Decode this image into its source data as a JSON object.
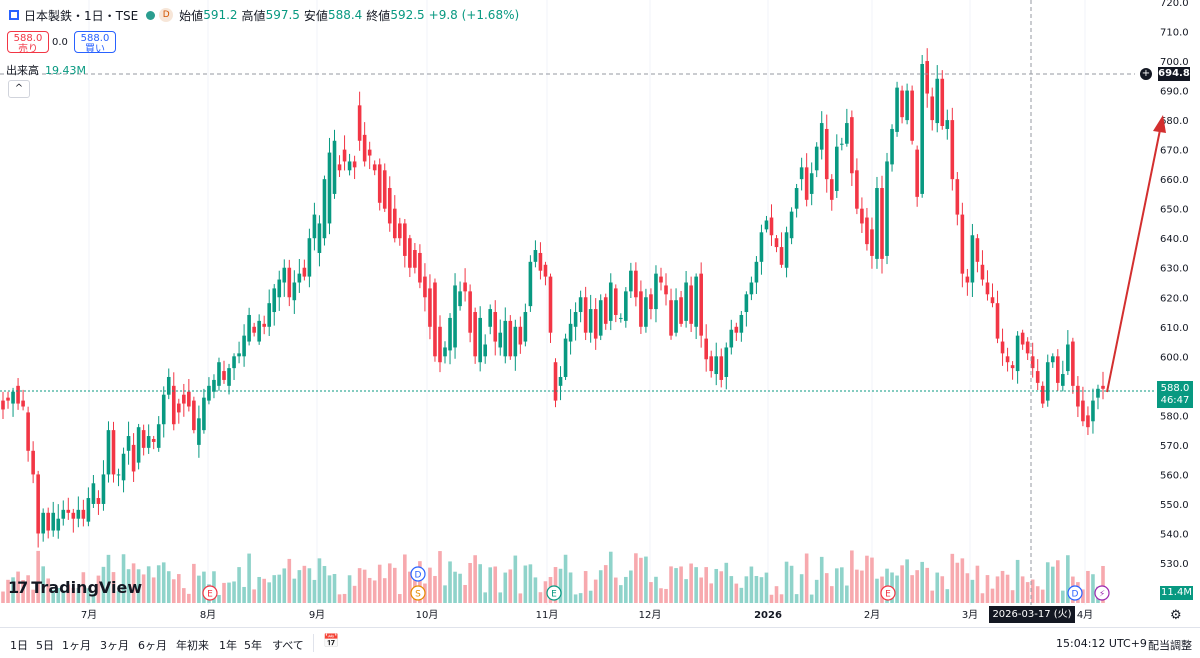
{
  "header": {
    "symbol": "日本製鉄・1日・TSE",
    "open_label": "始値",
    "open": "591.2",
    "high_label": "高値",
    "high": "597.5",
    "low_label": "安値",
    "low": "588.4",
    "close_label": "終値",
    "close": "592.5",
    "change": "+9.8 (+1.68%)",
    "d_badge": "D"
  },
  "sell": {
    "price": "588.0",
    "label": "売り"
  },
  "spread": "0.0",
  "buy": {
    "price": "588.0",
    "label": "買い"
  },
  "volume_label": "出来高",
  "volume_value": "19.43M",
  "collapse_glyph": "^",
  "logo": {
    "mark": "17",
    "text": "TradingView"
  },
  "price_badge": {
    "price": "588.0",
    "countdown": "46:47"
  },
  "crosshair": {
    "price": "694.8",
    "date": "2026-03-17 (火)"
  },
  "volume_badge": "11.4M",
  "event_markers": [
    {
      "x_month": "8月",
      "glyph": "E"
    },
    {
      "x_month": "10月",
      "glyph": "D"
    },
    {
      "x_month": "10月",
      "glyph": "S"
    },
    {
      "x_month": "11月",
      "glyph": "E"
    },
    {
      "x_month": "2月",
      "glyph": "E"
    },
    {
      "x_month": "4月",
      "glyph": "D"
    },
    {
      "x_month": "4月",
      "glyph": "⚡"
    }
  ],
  "bottom_bar": {
    "ranges": [
      "1日",
      "5日",
      "1ヶ月",
      "3ヶ月",
      "6ヶ月",
      "年初来",
      "1年",
      "5年",
      "すべて"
    ],
    "time": "15:04:12 UTC+9",
    "adjust": "配当調整"
  },
  "colors": {
    "up": "#089981",
    "down": "#f23645",
    "vol_up": "#8fd3ca",
    "vol_down": "#f7a9ae",
    "arrow": "#d32f2f"
  },
  "chart_data": {
    "type": "candlestick",
    "ylim": [
      520,
      720
    ],
    "y_ticks": [
      530,
      540,
      550,
      560,
      570,
      580,
      590,
      600,
      610,
      620,
      630,
      640,
      650,
      660,
      670,
      680,
      690,
      700,
      710,
      720
    ],
    "x_ticks": [
      "7月",
      "8月",
      "9月",
      "10月",
      "11月",
      "12月",
      "2026",
      "2月",
      "3月",
      "4月"
    ],
    "candles_open": [
      585,
      586,
      584,
      590,
      585,
      581,
      568,
      560,
      540,
      547,
      541,
      541,
      545,
      548,
      547,
      545,
      548,
      544,
      550,
      552,
      550,
      560,
      575,
      560,
      558,
      568,
      570,
      564,
      575,
      569,
      572,
      569,
      577,
      587,
      590,
      584,
      587,
      588,
      585,
      570,
      575,
      585,
      588,
      590,
      595,
      590,
      596,
      600,
      600,
      605,
      610,
      605,
      611,
      610,
      615,
      620,
      625,
      630,
      619,
      625,
      630,
      627,
      640,
      635,
      640,
      645,
      655,
      665,
      670,
      663,
      666,
      685,
      675,
      670,
      665,
      665,
      663,
      657,
      650,
      645,
      645,
      640,
      636,
      635,
      627,
      623,
      625,
      610,
      600,
      602,
      603,
      617,
      625,
      622,
      615,
      598,
      600,
      610,
      615,
      603,
      600,
      612,
      600,
      610,
      605,
      617,
      632,
      635,
      631,
      627,
      598,
      590,
      593,
      605,
      610,
      615,
      620,
      608,
      616,
      607,
      620,
      612,
      623,
      613,
      612,
      622,
      629,
      622,
      610,
      621,
      616,
      627,
      624,
      619,
      608,
      620,
      612,
      624,
      610,
      628,
      606,
      600,
      594,
      600,
      593,
      603,
      610,
      608,
      615,
      621,
      625,
      632,
      643,
      647,
      640,
      637,
      630,
      640,
      650,
      660,
      664,
      655,
      663,
      670,
      677,
      660,
      656,
      672,
      672,
      681,
      663,
      650,
      647,
      643,
      633,
      657,
      634,
      665,
      676,
      690,
      680,
      690,
      670,
      655,
      700,
      688,
      679,
      694,
      677,
      680,
      660,
      648,
      627,
      625,
      640,
      631,
      625,
      620,
      618,
      605,
      600,
      597,
      595,
      608,
      605,
      600,
      595,
      590,
      585,
      598,
      600,
      590,
      595,
      605,
      590,
      585,
      580,
      578,
      586,
      590
    ],
    "candles_close": [
      582,
      585,
      588,
      584,
      583,
      568,
      560,
      540,
      547,
      541,
      547,
      545,
      548,
      547,
      545,
      548,
      545,
      552,
      557,
      550,
      560,
      575,
      560,
      560,
      567,
      573,
      561,
      576,
      569,
      573,
      571,
      577,
      587,
      593,
      577,
      581,
      584,
      583,
      575,
      579,
      586,
      590,
      592,
      598,
      592,
      596,
      600,
      601,
      607,
      614,
      608,
      612,
      610,
      618,
      623,
      626,
      630,
      620,
      625,
      628,
      627,
      640,
      648,
      645,
      660,
      669,
      673,
      663,
      666,
      666,
      664,
      673,
      666,
      668,
      663,
      652,
      650,
      645,
      640,
      640,
      634,
      630,
      630,
      625,
      620,
      610,
      600,
      598,
      603,
      613,
      624,
      622,
      622,
      608,
      600,
      613,
      604,
      616,
      605,
      608,
      612,
      600,
      610,
      604,
      615,
      632,
      636,
      629,
      627,
      608,
      585,
      593,
      606,
      611,
      615,
      620,
      608,
      616,
      606,
      619,
      611,
      625,
      614,
      613,
      622,
      629,
      620,
      610,
      620,
      616,
      628,
      625,
      621,
      607,
      619,
      611,
      625,
      611,
      627,
      607,
      599,
      595,
      600,
      592,
      603,
      609,
      608,
      614,
      621,
      625,
      632,
      642,
      646,
      641,
      637,
      631,
      642,
      649,
      657,
      664,
      653,
      662,
      671,
      679,
      660,
      653,
      671,
      672,
      679,
      662,
      650,
      645,
      638,
      634,
      657,
      633,
      666,
      677,
      691,
      681,
      690,
      673,
      654,
      699,
      689,
      680,
      694,
      678,
      680,
      660,
      648,
      628,
      625,
      641,
      632,
      626,
      621,
      618,
      606,
      601,
      598,
      596,
      607,
      604,
      601,
      596,
      591,
      584,
      598,
      600,
      591,
      594,
      604,
      590,
      583,
      578,
      576,
      585,
      589,
      589
    ],
    "volume_note": "volume bars shown as relative heights at bottom of chart"
  }
}
